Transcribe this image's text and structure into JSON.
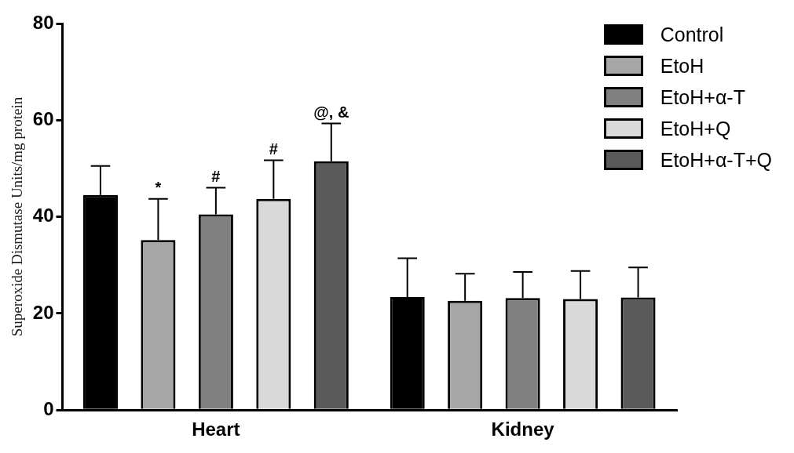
{
  "chart_data": {
    "type": "bar",
    "y_label": "Superoxide Dismutase Units/mg protein",
    "categories": [
      "Heart",
      "Kidney"
    ],
    "series": [
      {
        "name": "Control",
        "color": "#000000",
        "values": [
          44.5,
          23.4
        ],
        "errors": [
          6.0,
          8.0
        ],
        "annotations": [
          null,
          null
        ]
      },
      {
        "name": "EtoH",
        "color": "#a6a6a6",
        "values": [
          35.2,
          22.6
        ],
        "errors": [
          8.5,
          5.6
        ],
        "annotations": [
          "*",
          null
        ]
      },
      {
        "name": "EtoH+α-T",
        "color": "#808080",
        "values": [
          40.5,
          23.2
        ],
        "errors": [
          5.5,
          5.4
        ],
        "annotations": [
          "#",
          null
        ]
      },
      {
        "name": "EtoH+Q",
        "color": "#d9d9d9",
        "values": [
          43.7,
          23.0
        ],
        "errors": [
          8.0,
          5.8
        ],
        "annotations": [
          "#",
          null
        ]
      },
      {
        "name": "EtoH+α-T+Q",
        "color": "#5a5a5a",
        "values": [
          51.5,
          23.3
        ],
        "errors": [
          7.8,
          6.2
        ],
        "annotations": [
          "@, &",
          null
        ]
      }
    ],
    "ylim": [
      0,
      80
    ],
    "yticks": [
      0,
      20,
      40,
      60,
      80
    ],
    "grid": false,
    "legend": "upper right"
  }
}
